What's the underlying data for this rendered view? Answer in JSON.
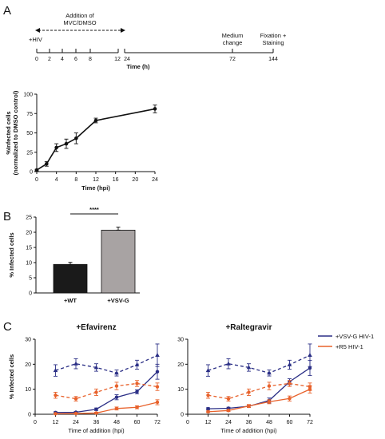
{
  "panels": {
    "A": "A",
    "B": "B",
    "C": "C"
  },
  "timeline": {
    "hiv_label": "+HIV",
    "addition_label_1": "Addition of",
    "addition_label_2": "MVC/DMSO",
    "medium_label_1": "Medium",
    "medium_label_2": "change",
    "fixation_label_1": "Fixation +",
    "fixation_label_2": "Staining",
    "ticks_left": [
      "0",
      "2",
      "4",
      "6",
      "8",
      "12"
    ],
    "ticks_right": [
      "24",
      "72",
      "144"
    ],
    "axis_label": "Time (h)"
  },
  "chart_data": [
    {
      "id": "A",
      "type": "line",
      "x": [
        0,
        2,
        4,
        6,
        8,
        12,
        24
      ],
      "y": [
        2,
        10,
        31,
        36,
        43,
        66,
        81
      ],
      "err": [
        1,
        3,
        5,
        6,
        7,
        3,
        5
      ],
      "xlabel": "Time (hpi)",
      "ylabel": "%Infected cells",
      "ylabel2": "(normalized to DMSO control)",
      "xlim": [
        0,
        24
      ],
      "ylim": [
        0,
        100
      ],
      "xticks": [
        "0",
        "4",
        "8",
        "12",
        "16",
        "20",
        "24"
      ],
      "yticks": [
        "0",
        "25",
        "50",
        "75",
        "100"
      ],
      "color": "#111111"
    },
    {
      "id": "B",
      "type": "bar",
      "categories": [
        "+WT",
        "+VSV-G"
      ],
      "values": [
        9.4,
        20.7
      ],
      "err": [
        0.7,
        1.0
      ],
      "colors": [
        "#1a1a1a",
        "#a8a3a3"
      ],
      "ylabel": "% Infected cells",
      "ylim": [
        0,
        25
      ],
      "yticks": [
        "0",
        "5",
        "10",
        "15",
        "20",
        "25"
      ],
      "significance": "****"
    },
    {
      "id": "C1",
      "type": "line",
      "title": "+Efavirenz",
      "x": [
        12,
        24,
        36,
        48,
        60,
        72
      ],
      "series": [
        {
          "role": "VSV-G control",
          "values": [
            17.5,
            20.2,
            18.7,
            16.5,
            19.8,
            23.6
          ],
          "err": [
            2.3,
            2.0,
            1.5,
            1.2,
            1.8,
            4.5
          ],
          "color": "#2b2f86",
          "dashed": true
        },
        {
          "role": "VSV-G",
          "values": [
            0.7,
            0.8,
            2.0,
            6.8,
            9.0,
            17.0
          ],
          "err": [
            0.3,
            0.3,
            0.5,
            1.0,
            0.8,
            3.0
          ],
          "color": "#2b2f86",
          "dashed": false
        },
        {
          "role": "R5 control",
          "values": [
            7.6,
            6.2,
            8.8,
            11.3,
            12.3,
            11.0
          ],
          "err": [
            1.2,
            0.9,
            1.3,
            1.5,
            1.2,
            1.5
          ],
          "color": "#e8622c",
          "dashed": true
        },
        {
          "role": "R5",
          "values": [
            0.2,
            0.3,
            0.5,
            2.3,
            2.8,
            4.8
          ],
          "err": [
            0.2,
            0.2,
            0.3,
            0.6,
            0.6,
            1.0
          ],
          "color": "#e8622c",
          "dashed": false
        }
      ],
      "xlabel": "Time of addition (hpi)",
      "ylabel": "% Infected cells",
      "xlim": [
        0,
        72
      ],
      "ylim": [
        0,
        30
      ],
      "xticks": [
        "0",
        "12",
        "24",
        "36",
        "48",
        "60",
        "72"
      ],
      "yticks": [
        "0",
        "10",
        "20",
        "30"
      ]
    },
    {
      "id": "C2",
      "type": "line",
      "title": "+Raltegravir",
      "x": [
        12,
        24,
        36,
        48,
        60,
        72
      ],
      "series": [
        {
          "role": "VSV-G control",
          "values": [
            17.5,
            20.2,
            18.7,
            16.5,
            19.8,
            23.6
          ],
          "err": [
            2.3,
            2.0,
            1.5,
            1.2,
            1.8,
            4.5
          ],
          "color": "#2b2f86",
          "dashed": true
        },
        {
          "role": "VSV-G",
          "values": [
            2.2,
            2.4,
            3.2,
            5.5,
            13.0,
            18.5
          ],
          "err": [
            0.4,
            0.4,
            0.5,
            1.0,
            1.2,
            3.0
          ],
          "color": "#2b2f86",
          "dashed": false
        },
        {
          "role": "R5 control",
          "values": [
            7.6,
            6.2,
            8.8,
            11.3,
            12.3,
            11.0
          ],
          "err": [
            1.2,
            0.9,
            1.3,
            1.5,
            1.2,
            1.5
          ],
          "color": "#e8622c",
          "dashed": true
        },
        {
          "role": "R5",
          "values": [
            1.0,
            1.5,
            3.3,
            5.0,
            6.3,
            10.0
          ],
          "err": [
            0.3,
            0.4,
            0.6,
            0.8,
            1.0,
            1.5
          ],
          "color": "#e8622c",
          "dashed": false
        }
      ],
      "xlabel": "Time of addition (hpi)",
      "xlim": [
        0,
        72
      ],
      "ylim": [
        0,
        30
      ],
      "xticks": [
        "0",
        "12",
        "24",
        "36",
        "48",
        "60",
        "72"
      ],
      "yticks": [
        "0",
        "10",
        "20",
        "30"
      ]
    }
  ],
  "legend": [
    {
      "label": "+VSV-G HIV-1",
      "color": "#2b2f86"
    },
    {
      "label": "+R5 HIV-1",
      "color": "#e8622c"
    }
  ]
}
